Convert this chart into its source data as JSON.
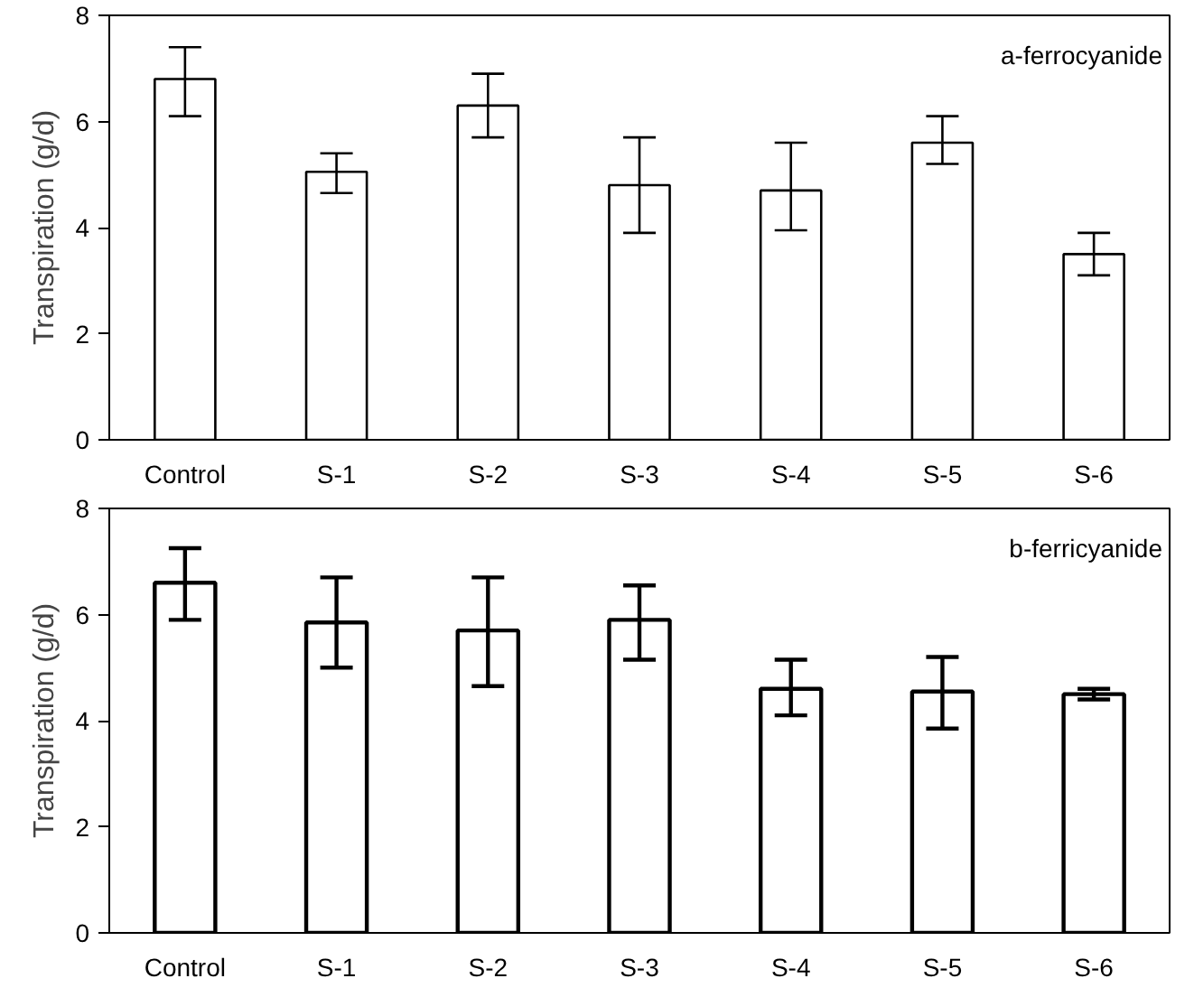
{
  "chart_data": [
    {
      "type": "bar",
      "ylabel": "Transpiration (g/d)",
      "categories": [
        "Control",
        "S-1",
        "S-2",
        "S-3",
        "S-4",
        "S-5",
        "S-6"
      ],
      "color": "#ffffff",
      "values": [
        6.8,
        5.05,
        6.3,
        4.8,
        4.7,
        5.6,
        3.5
      ],
      "errors": [
        [
          6.1,
          7.4
        ],
        [
          4.65,
          5.4
        ],
        [
          5.7,
          6.9
        ],
        [
          3.9,
          5.7
        ],
        [
          3.95,
          5.6
        ],
        [
          5.2,
          6.1
        ],
        [
          3.1,
          3.9
        ]
      ],
      "ylim": [
        0,
        8
      ],
      "yticks": [
        0,
        2,
        4,
        6,
        8
      ],
      "grid": false,
      "annotations": [
        "a-ferrocyanide"
      ]
    },
    {
      "type": "bar",
      "ylabel": "Transpiration (g/d)",
      "categories": [
        "Control",
        "S-1",
        "S-2",
        "S-3",
        "S-4",
        "S-5",
        "S-6"
      ],
      "color": "#ffffff",
      "values": [
        6.6,
        5.85,
        5.7,
        5.9,
        4.6,
        4.55,
        4.5
      ],
      "errors": [
        [
          5.9,
          7.25
        ],
        [
          5.0,
          6.7
        ],
        [
          4.65,
          6.7
        ],
        [
          5.15,
          6.55
        ],
        [
          4.1,
          5.15
        ],
        [
          3.85,
          5.2
        ],
        [
          4.4,
          4.6
        ]
      ],
      "ylim": [
        0,
        8
      ],
      "yticks": [
        0,
        2,
        4,
        6,
        8
      ],
      "grid": false,
      "annotations": [
        "b-ferricyanide"
      ]
    }
  ]
}
